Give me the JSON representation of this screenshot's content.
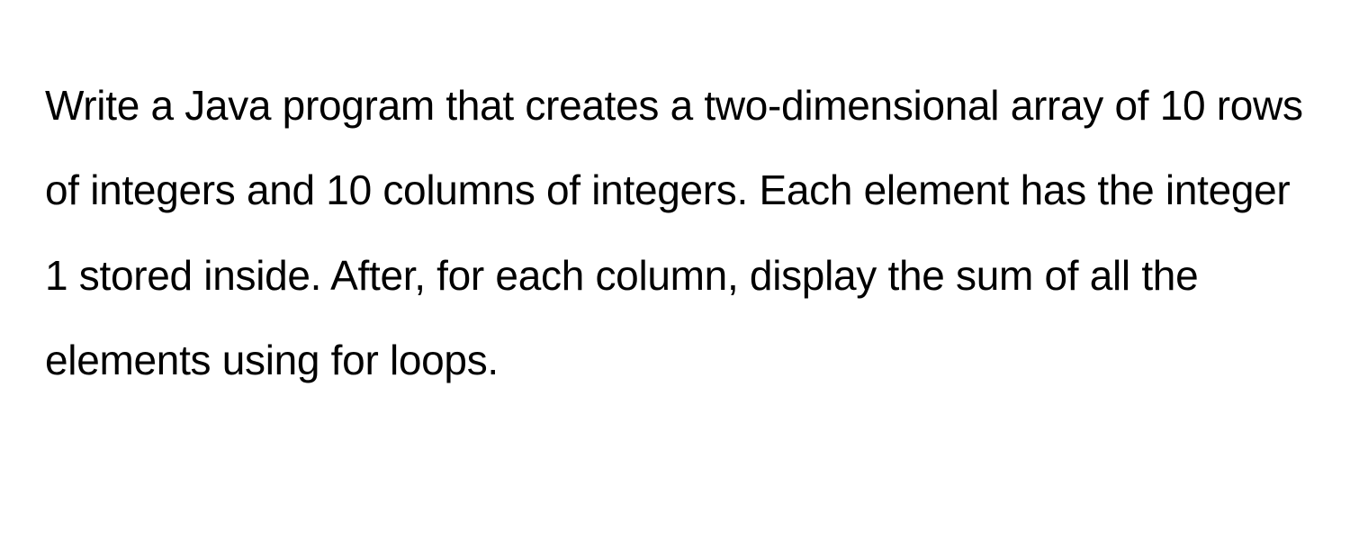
{
  "document": {
    "paragraph": "Write a Java program that creates a two-dimensional array of 10 rows of integers and 10 columns of integers. Each element has the integer 1 stored inside. After, for each column, display the sum of all the elements using for loops.",
    "font_color": "#000000",
    "background_color": "#ffffff",
    "font_size": 46,
    "line_height": 2.05,
    "font_weight": 400
  }
}
